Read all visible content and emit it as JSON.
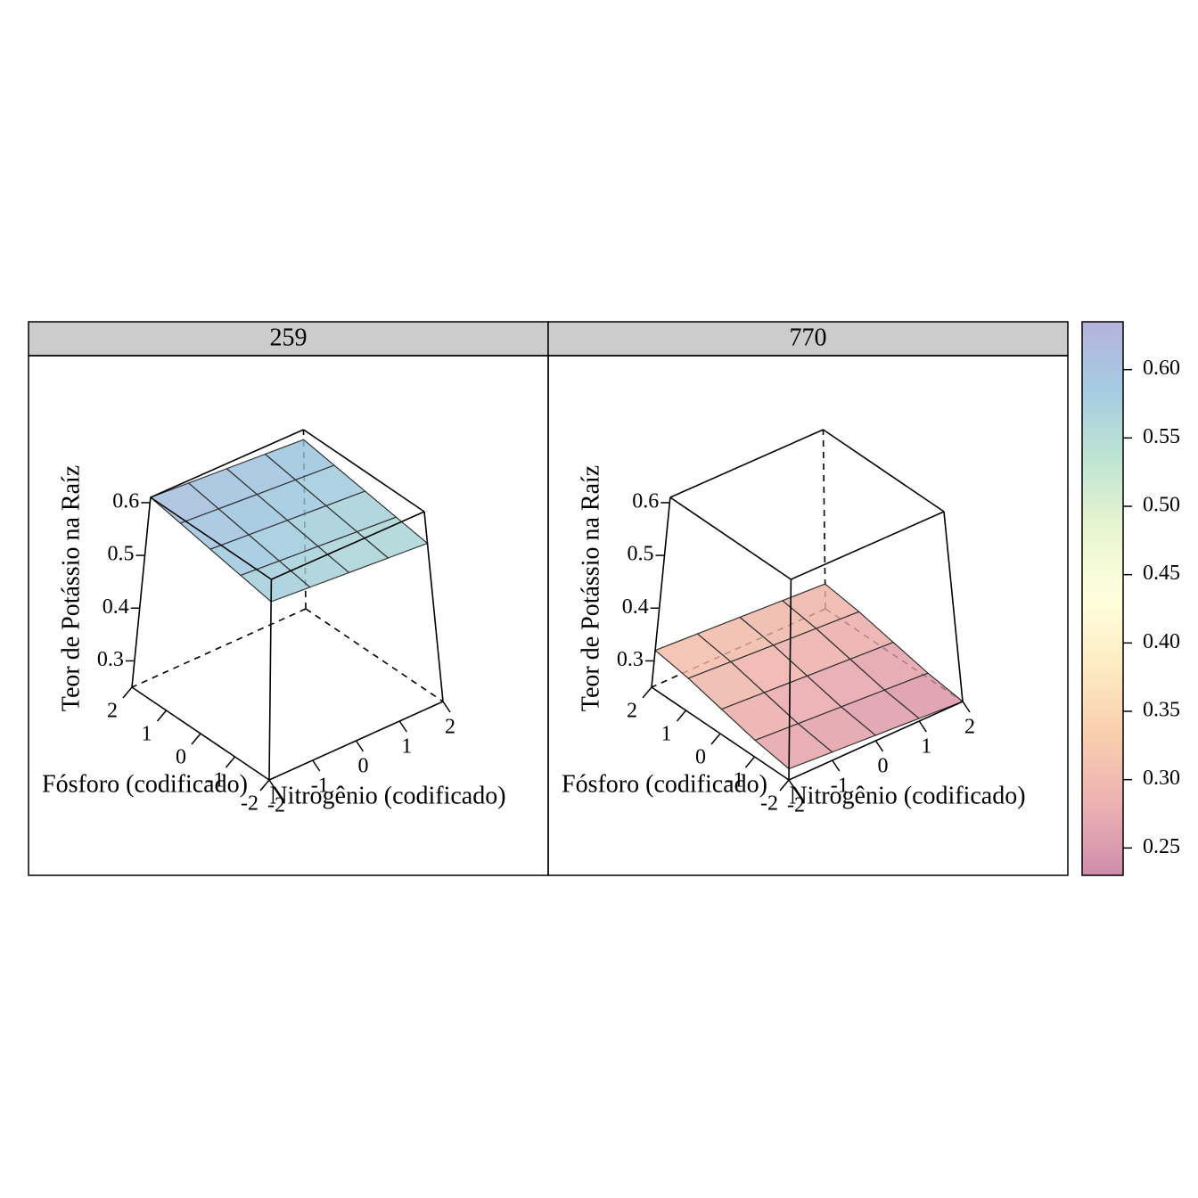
{
  "chart_data": {
    "type": "surface3d",
    "xlabel": "Nitrogênio (codificado)",
    "ylabel": "Fósforo (codificado)",
    "zlabel": "Teor de Potássio na Raíz",
    "xlim": [
      -2,
      2
    ],
    "ylim": [
      -2,
      2
    ],
    "zlim": [
      0.25,
      0.61
    ],
    "xticks": [
      -2,
      -1,
      0,
      1,
      2
    ],
    "yticks": [
      -2,
      -1,
      0,
      1,
      2
    ],
    "zticks": [
      0.3,
      0.4,
      0.5,
      0.6
    ],
    "panels": [
      {
        "strip": "259",
        "z": [
          [
            0.57,
            0.565,
            0.56,
            0.555,
            0.55
          ],
          [
            0.58,
            0.575,
            0.57,
            0.565,
            0.56
          ],
          [
            0.59,
            0.585,
            0.58,
            0.575,
            0.57
          ],
          [
            0.6,
            0.595,
            0.59,
            0.585,
            0.58
          ],
          [
            0.61,
            0.605,
            0.6,
            0.595,
            0.59
          ]
        ]
      },
      {
        "strip": "770",
        "z": [
          [
            0.27,
            0.265,
            0.26,
            0.255,
            0.25
          ],
          [
            0.28,
            0.275,
            0.27,
            0.265,
            0.26
          ],
          [
            0.295,
            0.29,
            0.285,
            0.28,
            0.275
          ],
          [
            0.31,
            0.305,
            0.3,
            0.295,
            0.29
          ],
          [
            0.32,
            0.315,
            0.31,
            0.305,
            0.3
          ]
        ]
      }
    ],
    "colorkey": {
      "lim": [
        0.23,
        0.635
      ],
      "ticks": [
        0.25,
        {
          "value": 0.3,
          "label": "0.30"
        },
        0.35,
        {
          "value": 0.4,
          "label": "0.40"
        },
        0.45,
        {
          "value": 0.5,
          "label": "0.50"
        },
        0.55,
        {
          "value": 0.6,
          "label": "0.60"
        }
      ],
      "colors": [
        "#c6789c",
        "#e9a3a6",
        "#f7c4a0",
        "#fde7b8",
        "#fefed6",
        "#e6f4c9",
        "#b4e0ca",
        "#95c3dd",
        "#a8a5d5"
      ]
    }
  }
}
